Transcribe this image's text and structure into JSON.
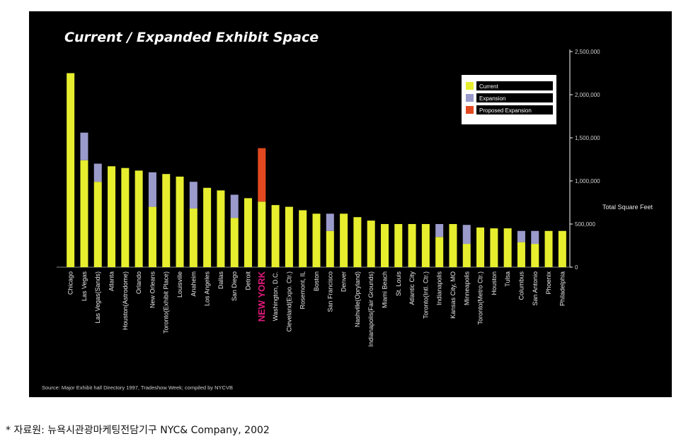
{
  "footnote": "* 자료원: 뉴욕시관광마케팅전담기구 NYC& Company, 2002",
  "chart_data": {
    "type": "bar",
    "stacked": true,
    "title": "Current / Expanded Exhibit Space",
    "ylabel": "Total Square Feet",
    "ylim": [
      0,
      2500000
    ],
    "yticks": [
      "2,500,000",
      "2,000,000",
      "1,500,000",
      "1,000,000",
      "500,000",
      "0"
    ],
    "ytick_values": [
      2500000,
      2000000,
      1500000,
      1000000,
      500000,
      0
    ],
    "y_axis_side": "right",
    "grid": false,
    "legend_position": "top-right",
    "highlight_category": "NEW YORK",
    "source": "Source:  Major Exhibit hall Directory 1997, Tradeshow Week; compiled by NYCVB",
    "colors": {
      "Current": "#e6ee2e",
      "Expansion": "#9a9acb",
      "Proposed Expansion": "#e2481f",
      "highlight": "#e0197a"
    },
    "categories": [
      "Chicago",
      "Las Vegas",
      "Las Vegas(Sands)",
      "Atlanta",
      "Houston(Astrodome)",
      "Orlando",
      "New Orleans",
      "Toronto(Exhibit Place)",
      "Louisville",
      "Anaheim",
      "Los Angeles",
      "Dallas",
      "San Diego",
      "Detroit",
      "NEW YORK",
      "Washington, D.C.",
      "Cleveland(Expo. Ctr.)",
      "Rosemont, IL",
      "Boston",
      "San Francisco",
      "Denver",
      "Nashville(Opryland)",
      "Indianapolis(Fair Grounds)",
      "Miami Beach",
      "St. Louis",
      "Atlantic City",
      "Toronto(Intl. Ctr.)",
      "Indianapolis",
      "Kansas City, MO",
      "Minneapolis",
      "Toronto(Metro Ctr.)",
      "Houston",
      "Tulsa",
      "Columbus",
      "San Antonio",
      "Phoenix",
      "Philadelphia"
    ],
    "series": [
      {
        "name": "Current",
        "values": [
          2250000,
          1240000,
          990000,
          1170000,
          1150000,
          1120000,
          700000,
          1080000,
          1050000,
          680000,
          920000,
          890000,
          570000,
          800000,
          760000,
          720000,
          700000,
          660000,
          620000,
          420000,
          620000,
          580000,
          540000,
          500000,
          500000,
          500000,
          500000,
          350000,
          500000,
          270000,
          460000,
          450000,
          450000,
          290000,
          270000,
          420000,
          420000
        ]
      },
      {
        "name": "Expansion",
        "values": [
          0,
          320000,
          210000,
          0,
          0,
          0,
          400000,
          0,
          0,
          310000,
          0,
          0,
          270000,
          0,
          0,
          0,
          0,
          0,
          0,
          200000,
          0,
          0,
          0,
          0,
          0,
          0,
          0,
          150000,
          0,
          220000,
          0,
          0,
          0,
          130000,
          150000,
          0,
          0
        ]
      },
      {
        "name": "Proposed Expansion",
        "values": [
          0,
          0,
          0,
          0,
          0,
          0,
          0,
          0,
          0,
          0,
          0,
          0,
          0,
          0,
          620000,
          0,
          0,
          0,
          0,
          0,
          0,
          0,
          0,
          0,
          0,
          0,
          0,
          0,
          0,
          0,
          0,
          0,
          0,
          0,
          0,
          0,
          0
        ]
      }
    ]
  }
}
